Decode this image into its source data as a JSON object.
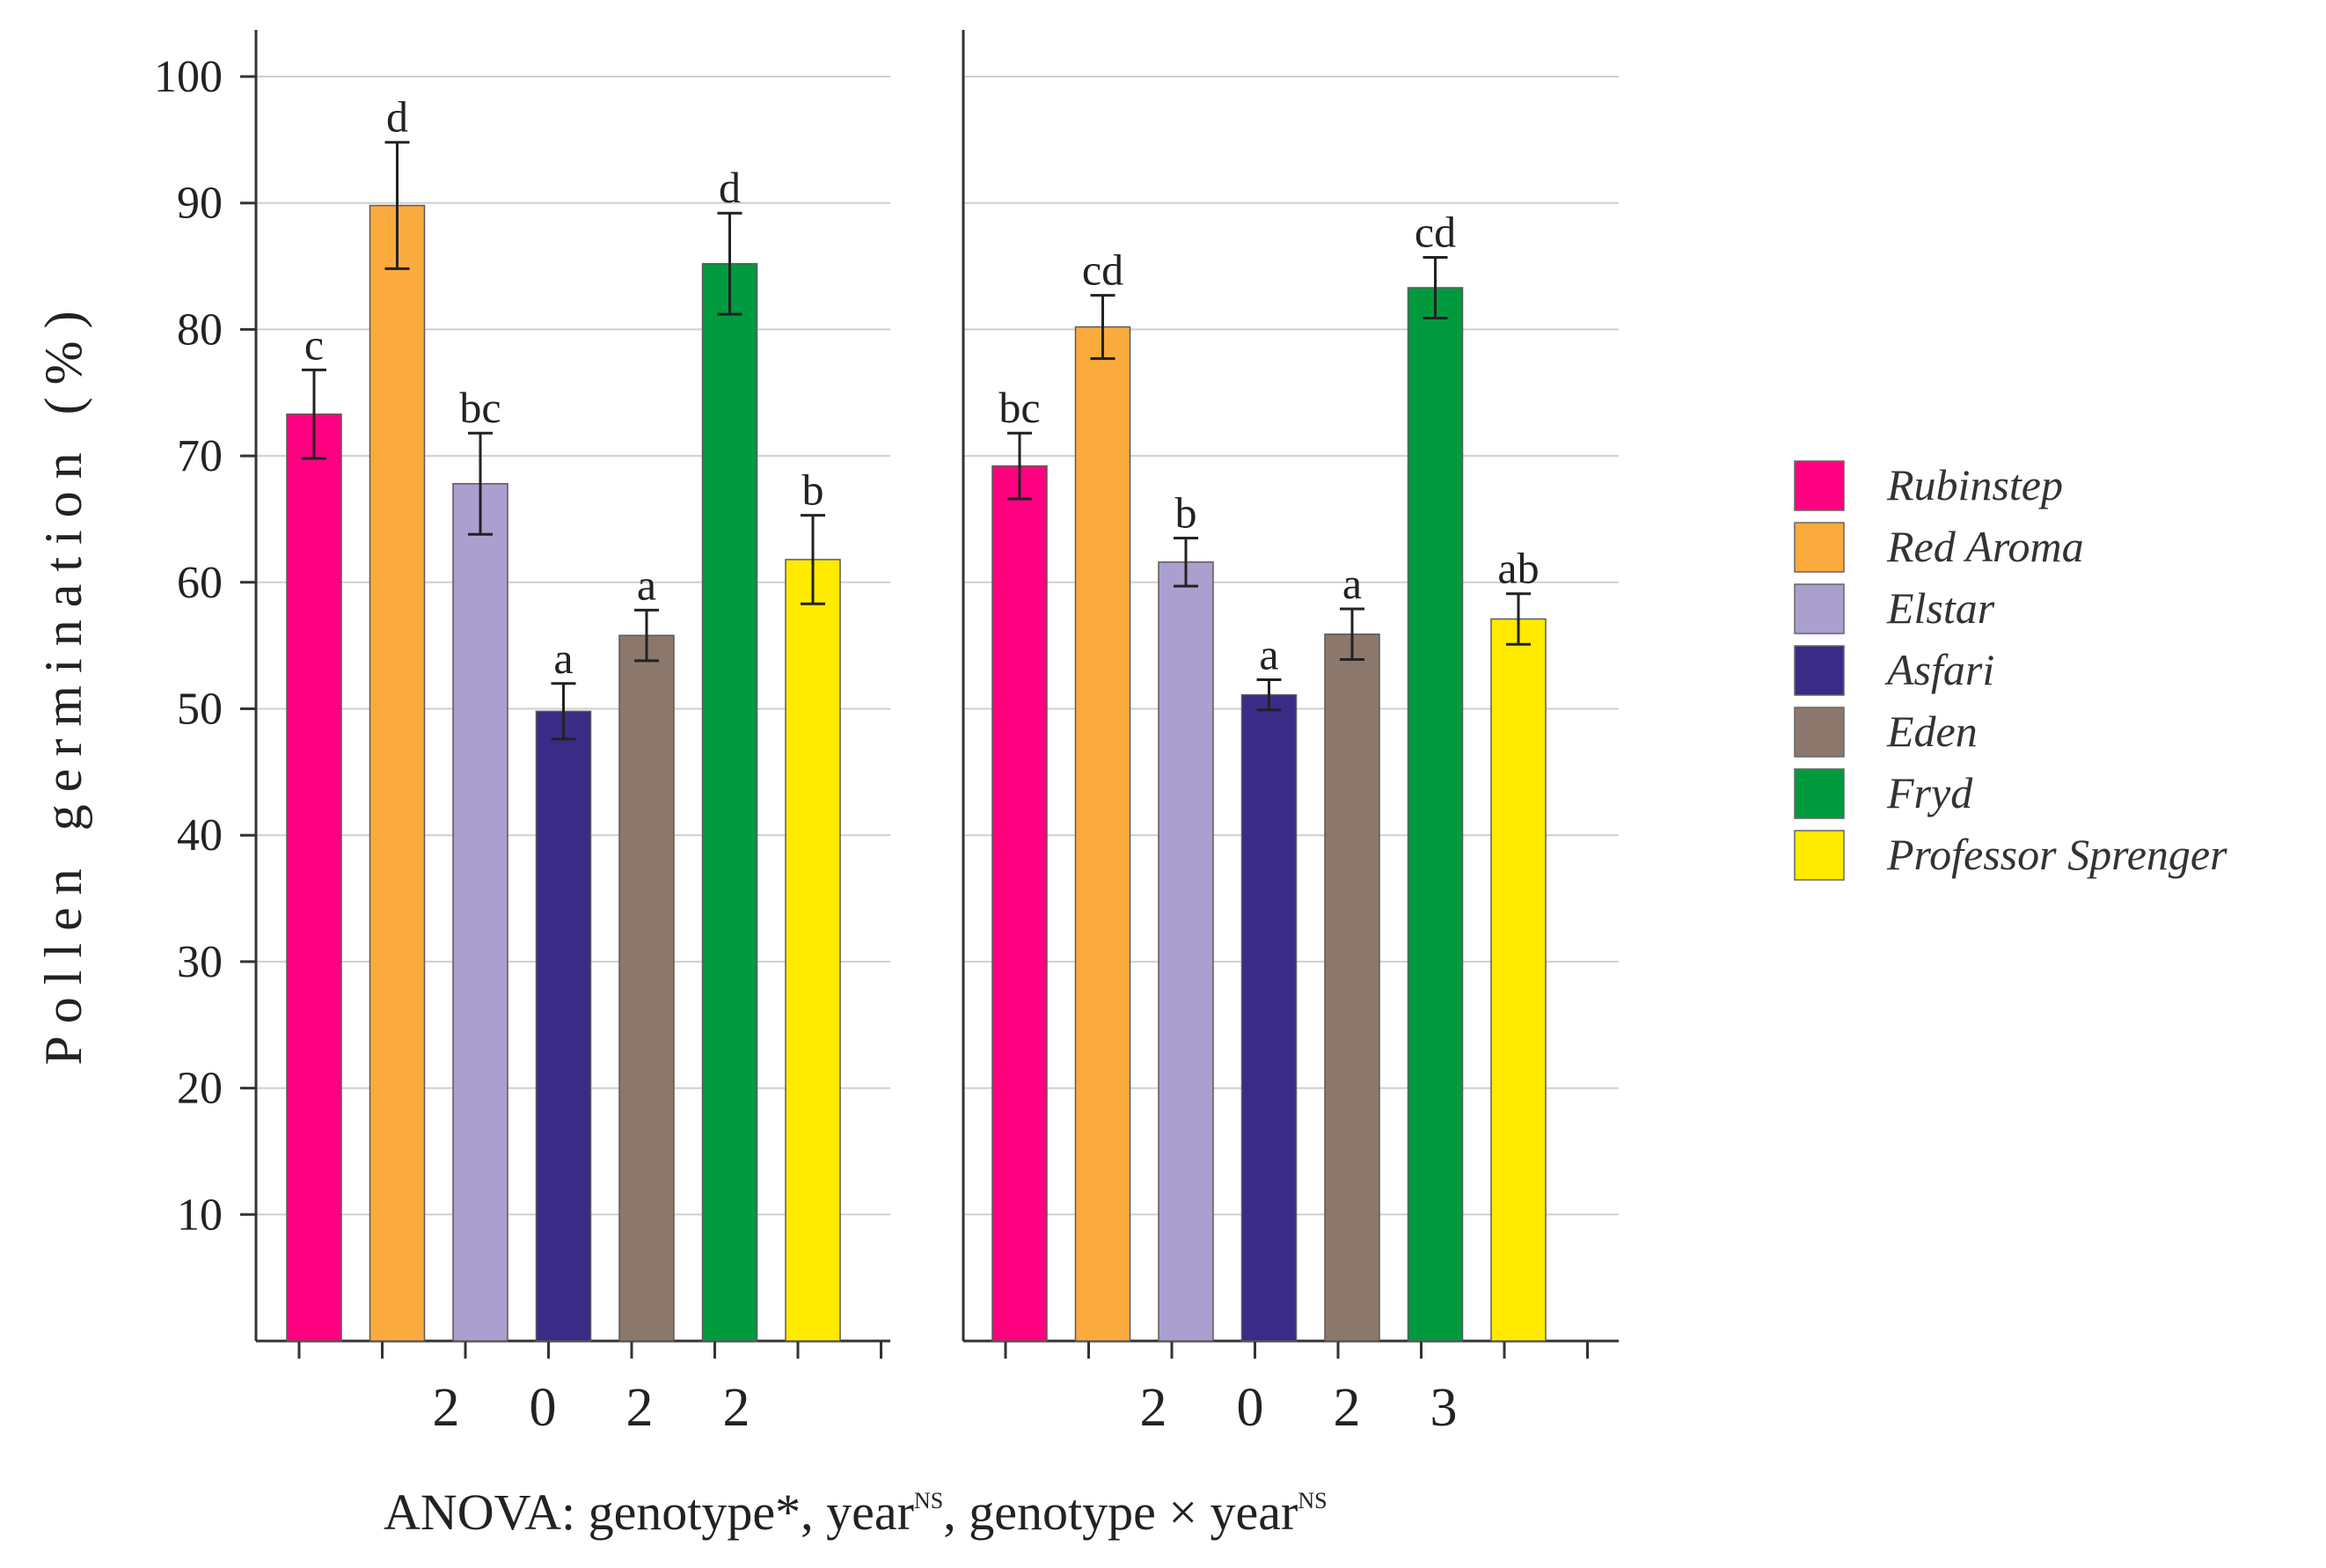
{
  "chart_data": {
    "type": "bar",
    "ylabel": "Pollen germination (%)",
    "yticks": [
      10,
      20,
      30,
      40,
      50,
      60,
      70,
      80,
      90,
      100
    ],
    "ylim": [
      0,
      100
    ],
    "grid": true,
    "legend_position": "right",
    "categories": [
      "Rubinstep",
      "Red Aroma",
      "Elstar",
      "Asfari",
      "Eden",
      "Fryd",
      "Professor Sprenger"
    ],
    "colors": [
      "#ff0080",
      "#fbaa3e",
      "#ab9fcf",
      "#3a2b87",
      "#8c776c",
      "#009a3e",
      "#ffea00"
    ],
    "panels": [
      {
        "year": "2022",
        "year_digits": [
          "2",
          "0",
          "2",
          "2"
        ],
        "values": [
          73.3,
          89.8,
          67.8,
          49.8,
          55.8,
          85.2,
          61.8
        ],
        "errors": [
          3.5,
          5.0,
          4.0,
          2.2,
          2.0,
          4.0,
          3.5
        ],
        "letters": [
          "c",
          "d",
          "bc",
          "a",
          "a",
          "d",
          "b"
        ]
      },
      {
        "year": "2023",
        "year_digits": [
          "2",
          "0",
          "2",
          "3"
        ],
        "values": [
          69.2,
          80.2,
          61.6,
          51.1,
          55.9,
          83.3,
          57.1
        ],
        "errors": [
          2.6,
          2.5,
          1.9,
          1.2,
          2.0,
          2.4,
          2.0
        ],
        "letters": [
          "bc",
          "cd",
          "b",
          "a",
          "a",
          "cd",
          "ab"
        ]
      }
    ],
    "anova": {
      "prefix": "ANOVA: genotype*, year",
      "sup1": "NS",
      "middle": ", genotype × year",
      "sup2": "NS"
    }
  }
}
